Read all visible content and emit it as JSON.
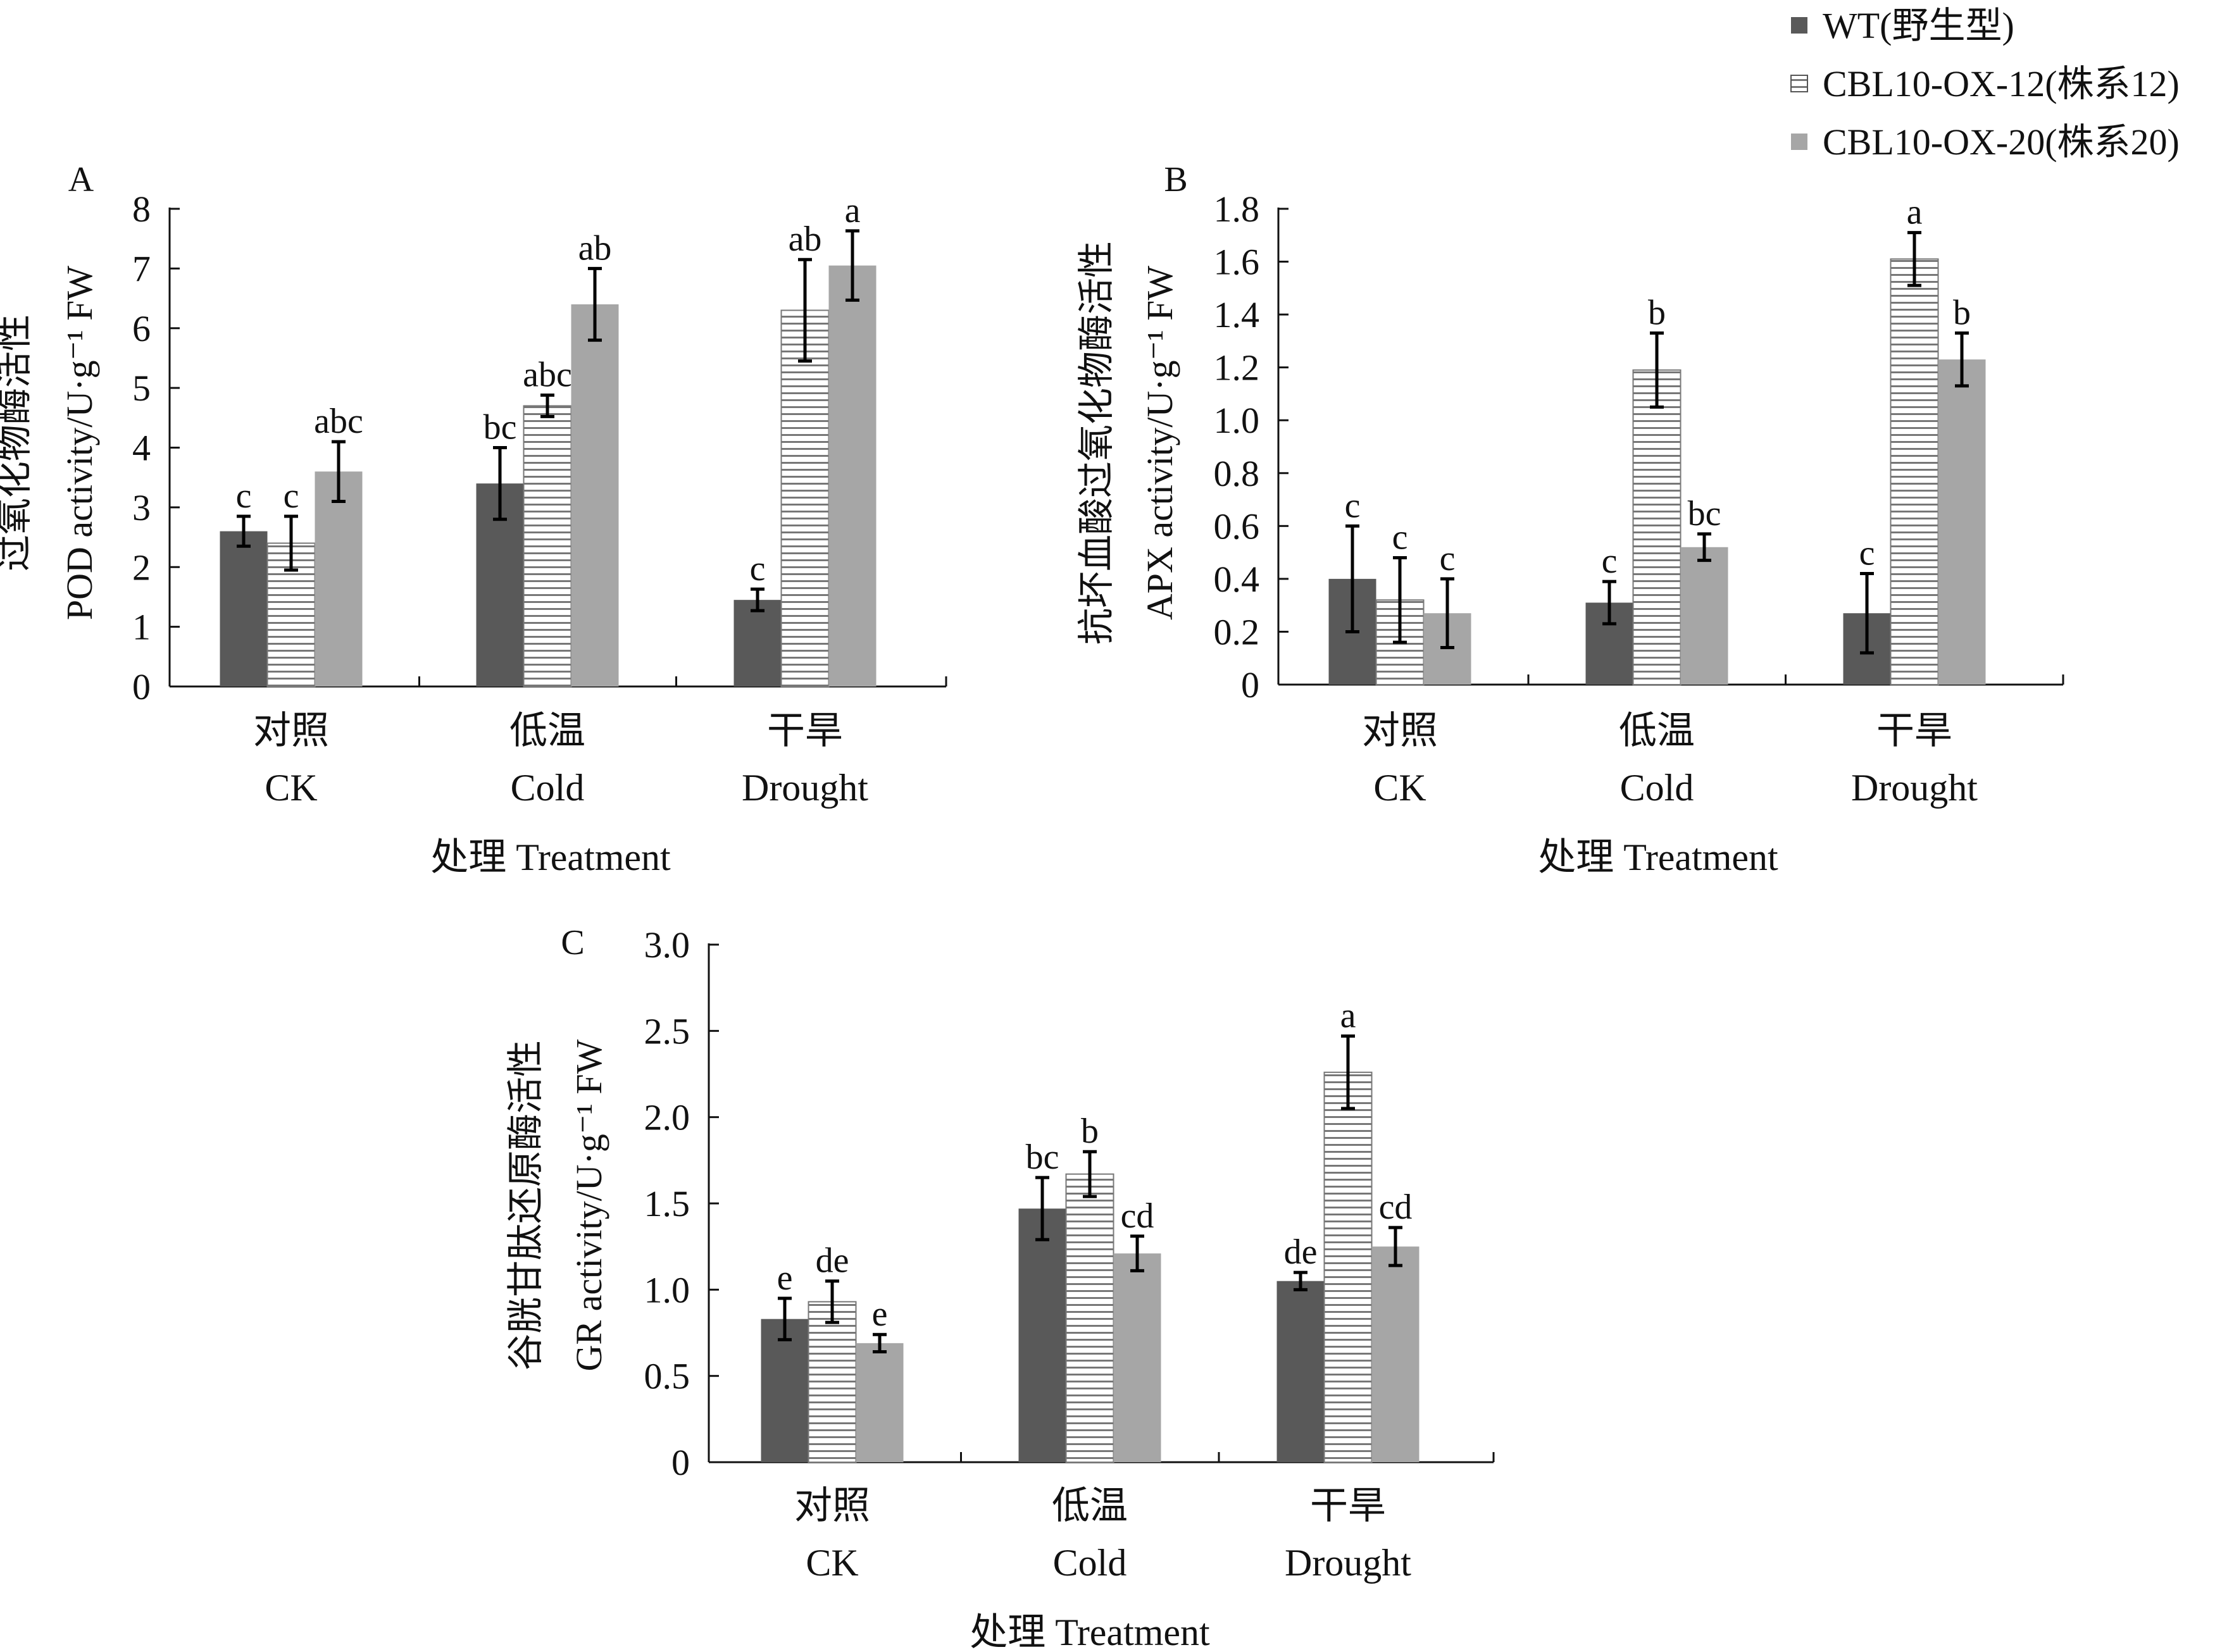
{
  "colors": {
    "wt": "#595959",
    "ox12_fill": "#ffffff",
    "ox12_stripe": "#777777",
    "ox20": "#a6a6a6",
    "axis": "#111111"
  },
  "legend": {
    "items": [
      {
        "key": "wt",
        "label": "WT(野生型)"
      },
      {
        "key": "ox12",
        "label": "CBL10-OX-12(株系12)"
      },
      {
        "key": "ox20",
        "label": "CBL10-OX-20(株系20)"
      }
    ]
  },
  "chart_data": [
    {
      "panel": "A",
      "type": "bar",
      "ylabel_cn": "过氧化物酶活性",
      "ylabel_en": "POD activity/U·g⁻¹ FW",
      "xlabel": "处理 Treatment",
      "ylim": [
        0,
        8
      ],
      "yticks": [
        0,
        1,
        2,
        3,
        4,
        5,
        6,
        7,
        8
      ],
      "ytick_labels": [
        "0",
        "1",
        "2",
        "3",
        "4",
        "5",
        "6",
        "7",
        "8"
      ],
      "categories": [
        {
          "cn": "对照",
          "en": "CK"
        },
        {
          "cn": "低温",
          "en": "Cold"
        },
        {
          "cn": "干旱",
          "en": "Drought"
        }
      ],
      "series": [
        {
          "name": "WT(野生型)",
          "key": "wt",
          "values": [
            2.6,
            3.4,
            1.45
          ],
          "errors": [
            0.25,
            0.6,
            0.18
          ],
          "labels": [
            "c",
            "bc",
            "c"
          ]
        },
        {
          "name": "CBL10-OX-12(株系12)",
          "key": "ox12",
          "values": [
            2.4,
            4.7,
            6.3
          ],
          "errors": [
            0.45,
            0.18,
            0.85
          ],
          "labels": [
            "c",
            "abc",
            "ab"
          ]
        },
        {
          "name": "CBL10-OX-20(株系20)",
          "key": "ox20",
          "values": [
            3.6,
            6.4,
            7.05
          ],
          "errors": [
            0.5,
            0.6,
            0.58
          ],
          "labels": [
            "abc",
            "ab",
            "a"
          ]
        }
      ]
    },
    {
      "panel": "B",
      "type": "bar",
      "ylabel_cn": "抗坏血酸过氧化物酶活性",
      "ylabel_en": "APX activity/U·g⁻¹ FW",
      "xlabel": "处理 Treatment",
      "ylim": [
        0,
        1.8
      ],
      "yticks": [
        0,
        0.2,
        0.4,
        0.6,
        0.8,
        1.0,
        1.2,
        1.4,
        1.6,
        1.8
      ],
      "ytick_labels": [
        "0",
        "0.2",
        "0.4",
        "0.6",
        "0.8",
        "1.0",
        "1.2",
        "1.4",
        "1.6",
        "1.8"
      ],
      "categories": [
        {
          "cn": "对照",
          "en": "CK"
        },
        {
          "cn": "低温",
          "en": "Cold"
        },
        {
          "cn": "干旱",
          "en": "Drought"
        }
      ],
      "series": [
        {
          "name": "WT(野生型)",
          "key": "wt",
          "values": [
            0.4,
            0.31,
            0.27
          ],
          "errors": [
            0.2,
            0.08,
            0.15
          ],
          "labels": [
            "c",
            "c",
            "c"
          ]
        },
        {
          "name": "CBL10-OX-12(株系12)",
          "key": "ox12",
          "values": [
            0.32,
            1.19,
            1.61
          ],
          "errors": [
            0.16,
            0.14,
            0.1
          ],
          "labels": [
            "c",
            "b",
            "a"
          ]
        },
        {
          "name": "CBL10-OX-20(株系20)",
          "key": "ox20",
          "values": [
            0.27,
            0.52,
            1.23
          ],
          "errors": [
            0.13,
            0.05,
            0.1
          ],
          "labels": [
            "c",
            "bc",
            "b"
          ]
        }
      ]
    },
    {
      "panel": "C",
      "type": "bar",
      "ylabel_cn": "谷胱甘肽还原酶活性",
      "ylabel_en": "GR activity/U·g⁻¹ FW",
      "xlabel": "处理 Treatment",
      "ylim": [
        0,
        3.0
      ],
      "yticks": [
        0,
        0.5,
        1.0,
        1.5,
        2.0,
        2.5,
        3.0
      ],
      "ytick_labels": [
        "0",
        "0.5",
        "1.0",
        "1.5",
        "2.0",
        "2.5",
        "3.0"
      ],
      "categories": [
        {
          "cn": "对照",
          "en": "CK"
        },
        {
          "cn": "低温",
          "en": "Cold"
        },
        {
          "cn": "干旱",
          "en": "Drought"
        }
      ],
      "series": [
        {
          "name": "WT(野生型)",
          "key": "wt",
          "values": [
            0.83,
            1.47,
            1.05
          ],
          "errors": [
            0.12,
            0.18,
            0.05
          ],
          "labels": [
            "e",
            "bc",
            "de"
          ]
        },
        {
          "name": "CBL10-OX-12(株系12)",
          "key": "ox12",
          "values": [
            0.93,
            1.67,
            2.26
          ],
          "errors": [
            0.12,
            0.13,
            0.21
          ],
          "labels": [
            "de",
            "b",
            "a"
          ]
        },
        {
          "name": "CBL10-OX-20(株系20)",
          "key": "ox20",
          "values": [
            0.69,
            1.21,
            1.25
          ],
          "errors": [
            0.05,
            0.1,
            0.11
          ],
          "labels": [
            "e",
            "cd",
            "cd"
          ]
        }
      ]
    }
  ]
}
